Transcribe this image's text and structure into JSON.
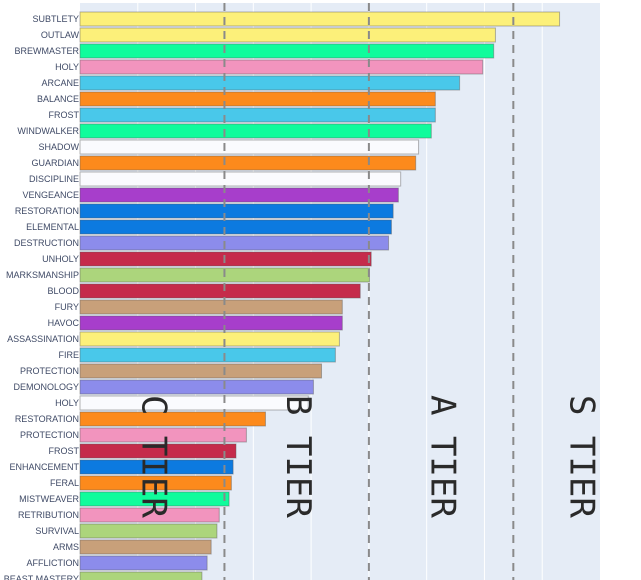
{
  "chart_data": {
    "type": "bar",
    "orientation": "horizontal",
    "title": "",
    "xlabel": "",
    "ylabel": "",
    "xlim": [
      0,
      90
    ],
    "grid": true,
    "categories": [
      "SUBTLETY",
      "OUTLAW",
      "BREWMASTER",
      "HOLY",
      "ARCANE",
      "BALANCE",
      "FROST",
      "WINDWALKER",
      "SHADOW",
      "GUARDIAN",
      "DISCIPLINE",
      "VENGEANCE",
      "RESTORATION",
      "ELEMENTAL",
      "DESTRUCTION",
      "UNHOLY",
      "MARKSMANSHIP",
      "BLOOD",
      "FURY",
      "HAVOC",
      "ASSASSINATION",
      "FIRE",
      "PROTECTION",
      "DEMONOLOGY",
      "HOLY",
      "RESTORATION",
      "PROTECTION",
      "FROST",
      "ENHANCEMENT",
      "FERAL",
      "MISTWEAVER",
      "RETRIBUTION",
      "SURVIVAL",
      "ARMS",
      "AFFLICTION",
      "BEAST MASTERY"
    ],
    "values": [
      83.0,
      71.9,
      71.6,
      69.7,
      65.7,
      61.5,
      61.5,
      60.8,
      58.6,
      58.1,
      55.5,
      55.1,
      54.2,
      53.9,
      53.4,
      50.4,
      50.1,
      48.5,
      45.4,
      45.4,
      44.9,
      44.2,
      41.8,
      40.4,
      39.5,
      32.1,
      28.8,
      27.0,
      26.5,
      26.2,
      25.8,
      24.1,
      23.7,
      22.7,
      22.0,
      21.1
    ],
    "colors": [
      "#fcf07a",
      "#fcf07a",
      "#10fc9c",
      "#f294be",
      "#49c8ea",
      "#fc8a1c",
      "#49c8ea",
      "#10fc9c",
      "#fafbfe",
      "#fc8a1c",
      "#fafbfe",
      "#a73ecb",
      "#0c7ae0",
      "#0c7ae0",
      "#8c8ceb",
      "#c52b4b",
      "#acd57c",
      "#c52b4b",
      "#c8a07a",
      "#a73ecb",
      "#fcf07a",
      "#49c8ea",
      "#c8a07a",
      "#8c8ceb",
      "#fafbfe",
      "#fc8a1c",
      "#f294be",
      "#c52b4b",
      "#0c7ae0",
      "#fc8a1c",
      "#10fc9c",
      "#f294be",
      "#acd57c",
      "#c8a07a",
      "#8c8ceb",
      "#acd57c"
    ],
    "tier_lines": [
      25,
      50,
      75
    ],
    "annotations": [
      {
        "text": "C TIER",
        "x": 12.5
      },
      {
        "text": "B TIER",
        "x": 37.5
      },
      {
        "text": "A TIER",
        "x": 62.5
      },
      {
        "text": "S TIER",
        "x": 86.5
      }
    ],
    "plot_bg": "#e5ecf6"
  }
}
